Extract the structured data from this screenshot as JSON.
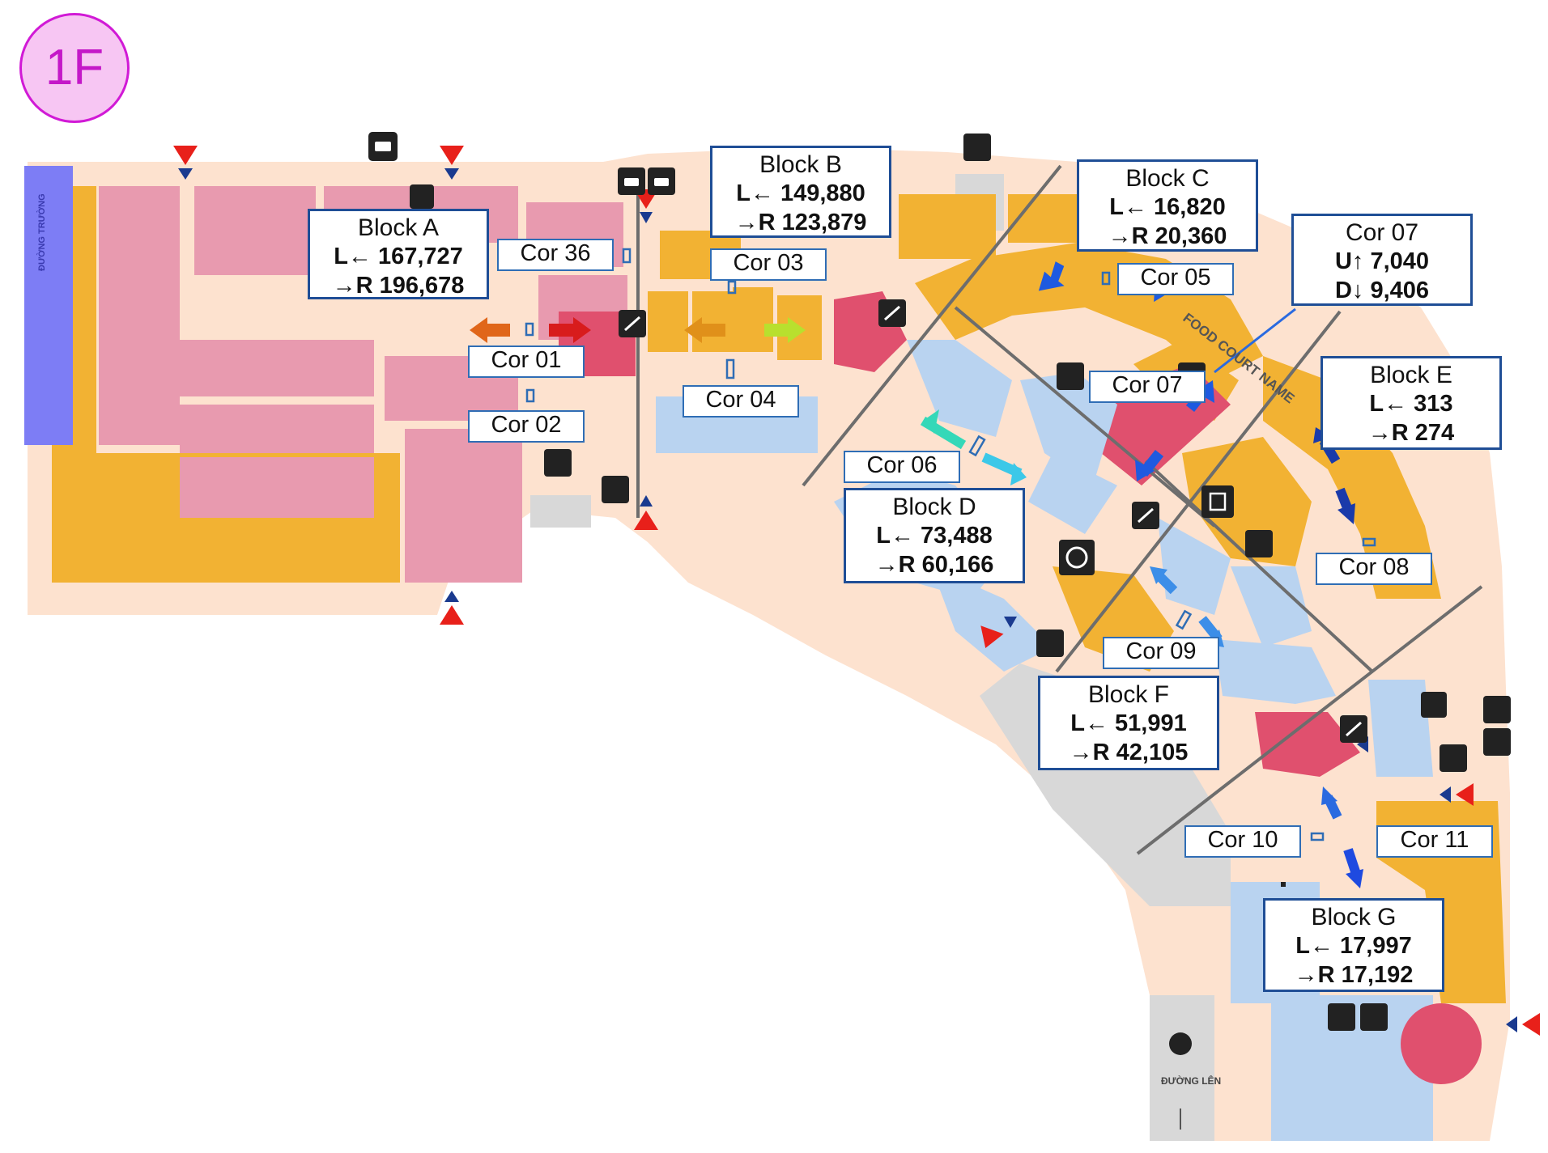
{
  "floor": {
    "label": "1F"
  },
  "blocks": [
    {
      "id": "block-a",
      "title": "Block A",
      "l": "L← 167,727",
      "r": "→R 196,678"
    },
    {
      "id": "block-b",
      "title": "Block B",
      "l": "L← 149,880",
      "r": "→R 123,879"
    },
    {
      "id": "block-c",
      "title": "Block C",
      "l": "L← 16,820",
      "r": "→R 20,360"
    },
    {
      "id": "cor-07-count",
      "title": "Cor 07",
      "l": "U↑ 7,040",
      "r": "D↓ 9,406"
    },
    {
      "id": "block-e",
      "title": "Block E",
      "l": "L← 313",
      "r": "→R 274"
    },
    {
      "id": "block-d",
      "title": "Block D",
      "l": "L← 73,488",
      "r": "→R 60,166"
    },
    {
      "id": "block-f",
      "title": "Block F",
      "l": "L← 51,991",
      "r": "→R 42,105"
    },
    {
      "id": "block-g",
      "title": "Block G",
      "l": "L← 17,997",
      "r": "→R 17,192"
    }
  ],
  "corridors": [
    "Cor 36",
    "Cor 03",
    "Cor 05",
    "Cor 01",
    "Cor 04",
    "Cor 07",
    "Cor 02",
    "Cor 06",
    "Cor 08",
    "Cor 09",
    "Cor 10",
    "Cor 11"
  ],
  "map_text": {
    "food_court": "FOOD COURT NAME",
    "side_street": "ĐƯỜNG TRƯỜNG",
    "ramp_label": "ĐƯỜNG LÊN"
  },
  "colors": {
    "shop_pink": "#e89aaf",
    "shop_orange": "#f2b233",
    "shop_blue": "#b9d3f0",
    "atrium": "#e0506e",
    "floor_bg": "#fde2cf",
    "service_grey": "#d8d8d8",
    "label_border": "#1f4e96",
    "entrance_red": "#e8201a",
    "entrance_blue": "#1a3a8f"
  }
}
